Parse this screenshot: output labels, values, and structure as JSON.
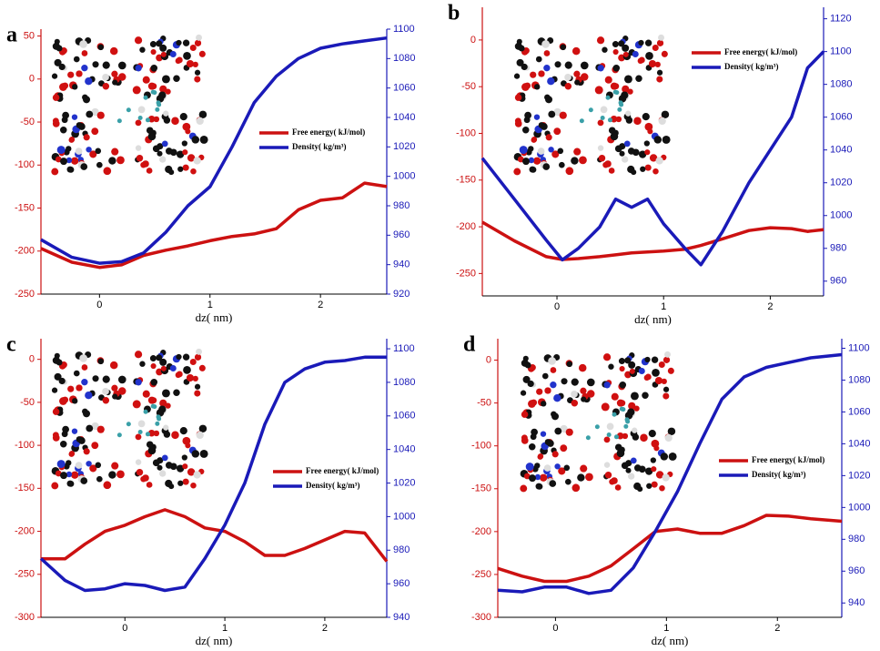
{
  "chart_data": [
    {
      "type": "line",
      "title": "a",
      "x_label": "dz( nm)",
      "x": [
        -0.53,
        -0.25,
        0,
        0.2,
        0.4,
        0.6,
        0.8,
        1.0,
        1.2,
        1.4,
        1.6,
        1.8,
        2.0,
        2.2,
        2.4,
        2.6
      ],
      "series": [
        {
          "name": "Free energy( kJ/mol)",
          "color": "#cc1111",
          "axis": "y",
          "values": [
            -197,
            -213,
            -219,
            -216,
            -205,
            -199,
            -194,
            -188,
            -183,
            -180,
            -174,
            -152,
            -141,
            -138,
            -121,
            -125
          ]
        },
        {
          "name": "Density( kg/m³)",
          "color": "#1a1ab8",
          "axis": "y2",
          "values": [
            957,
            945,
            941,
            942,
            948,
            962,
            980,
            993,
            1020,
            1050,
            1068,
            1080,
            1087,
            1090,
            1092,
            1094
          ]
        }
      ],
      "xlim": [
        -0.53,
        2.6
      ],
      "xticks": [
        0,
        1,
        2
      ],
      "ylim": [
        -250,
        58
      ],
      "yticks": [
        50,
        0,
        -50,
        -100,
        -150,
        -200,
        -250
      ],
      "y2lim": [
        920,
        1100
      ],
      "y2ticks": [
        920,
        940,
        960,
        980,
        1000,
        1020,
        1040,
        1060,
        1080,
        1100
      ]
    },
    {
      "type": "line",
      "title": "b",
      "x_label": "dz( nm)",
      "x": [
        -0.7,
        -0.4,
        -0.1,
        0.05,
        0.2,
        0.4,
        0.55,
        0.7,
        0.85,
        1.0,
        1.2,
        1.35,
        1.55,
        1.8,
        2.0,
        2.2,
        2.35,
        2.5
      ],
      "series": [
        {
          "name": "Free energy( kJ/mol)",
          "color": "#cc1111",
          "axis": "y",
          "values": [
            -195,
            -215,
            -232,
            -235,
            -234,
            -232,
            -230,
            -228,
            -227,
            -226,
            -224,
            -220,
            -213,
            -204,
            -201,
            -202,
            -205,
            -203
          ]
        },
        {
          "name": "Density( kg/m³)",
          "color": "#1a1ab8",
          "axis": "y2",
          "values": [
            1035,
            1010,
            985,
            973,
            980,
            993,
            1010,
            1005,
            1010,
            995,
            980,
            970,
            990,
            1020,
            1040,
            1060,
            1090,
            1100
          ]
        }
      ],
      "xlim": [
        -0.7,
        2.5
      ],
      "xticks": [
        0,
        1,
        2
      ],
      "ylim": [
        -274,
        35
      ],
      "yticks": [
        0,
        -50,
        -100,
        -150,
        -200,
        -250
      ],
      "y2lim": [
        951,
        1127
      ],
      "y2ticks": [
        960,
        980,
        1000,
        1020,
        1040,
        1060,
        1080,
        1100,
        1120
      ]
    },
    {
      "type": "line",
      "title": "c",
      "x_label": "dz( nm)",
      "x": [
        -0.84,
        -0.6,
        -0.4,
        -0.2,
        0,
        0.2,
        0.4,
        0.6,
        0.8,
        1.0,
        1.2,
        1.4,
        1.6,
        1.8,
        2.0,
        2.2,
        2.4,
        2.62
      ],
      "series": [
        {
          "name": "Free energy( kJ/mol)",
          "color": "#cc1111",
          "axis": "y",
          "values": [
            -232,
            -232,
            -215,
            -200,
            -193,
            -183,
            -175,
            -183,
            -196,
            -200,
            -212,
            -228,
            -228,
            -220,
            -210,
            -200,
            -202,
            -235
          ]
        },
        {
          "name": "Density( kg/m³)",
          "color": "#1a1ab8",
          "axis": "y2",
          "values": [
            975,
            962,
            956,
            957,
            960,
            959,
            956,
            958,
            975,
            995,
            1020,
            1055,
            1080,
            1088,
            1092,
            1093,
            1095,
            1095
          ]
        }
      ],
      "xlim": [
        -0.84,
        2.62
      ],
      "xticks": [
        0,
        1,
        2
      ],
      "ylim": [
        -300,
        24
      ],
      "yticks": [
        0,
        -50,
        -100,
        -150,
        -200,
        -250,
        -300
      ],
      "y2lim": [
        940,
        1106
      ],
      "y2ticks": [
        940,
        960,
        980,
        1000,
        1020,
        1040,
        1060,
        1080,
        1100
      ]
    },
    {
      "type": "line",
      "title": "d",
      "x_label": "dz( nm)",
      "x": [
        -0.52,
        -0.3,
        -0.1,
        0.1,
        0.3,
        0.5,
        0.7,
        0.9,
        1.1,
        1.3,
        1.5,
        1.7,
        1.9,
        2.1,
        2.3,
        2.58
      ],
      "series": [
        {
          "name": "Free energy( kJ/mol)",
          "color": "#cc1111",
          "axis": "y",
          "values": [
            -243,
            -252,
            -258,
            -258,
            -252,
            -240,
            -220,
            -200,
            -197,
            -202,
            -202,
            -193,
            -181,
            -182,
            -185,
            -188
          ]
        },
        {
          "name": "Density( kg/m³)",
          "color": "#1a1ab8",
          "axis": "y2",
          "values": [
            948,
            947,
            950,
            950,
            946,
            948,
            962,
            985,
            1010,
            1040,
            1068,
            1082,
            1088,
            1091,
            1094,
            1096
          ]
        }
      ],
      "xlim": [
        -0.52,
        2.58
      ],
      "xticks": [
        0,
        1,
        2
      ],
      "ylim": [
        -300,
        25
      ],
      "yticks": [
        0,
        -50,
        -100,
        -150,
        -200,
        -250,
        -300
      ],
      "y2lim": [
        931,
        1106
      ],
      "y2ticks": [
        940,
        960,
        980,
        1000,
        1020,
        1040,
        1060,
        1080,
        1100
      ]
    }
  ]
}
